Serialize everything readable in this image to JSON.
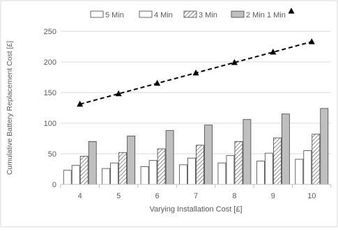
{
  "chart_data": {
    "type": "bar",
    "title": "",
    "xlabel": "Varying Installation Cost [£]",
    "ylabel": "Cumulative Battery Replacement Cost [£]",
    "ylim": [
      0,
      250
    ],
    "y_ticks": [
      0,
      50,
      100,
      150,
      200,
      250
    ],
    "grid": true,
    "legend_position": "top",
    "categories": [
      "4",
      "5",
      "6",
      "7",
      "8",
      "9",
      "10"
    ],
    "series": [
      {
        "name": "5 Min",
        "kind": "bar",
        "pattern": "hollow",
        "color": "#ffffff",
        "values": [
          23,
          26,
          29,
          32,
          35,
          38,
          41
        ]
      },
      {
        "name": "4 Min",
        "kind": "bar",
        "pattern": "hollow",
        "color": "#ffffff",
        "values": [
          31,
          35,
          39,
          43,
          47,
          51,
          55
        ]
      },
      {
        "name": "3 Min",
        "kind": "bar",
        "pattern": "hatched",
        "color": "#bfbfbf",
        "values": [
          46,
          52,
          58,
          64,
          70,
          76,
          82
        ]
      },
      {
        "name": "2 Min 1 Min",
        "kind": "bar",
        "pattern": "solid",
        "color": "#bfbfbf",
        "values": [
          70,
          79,
          88,
          97,
          106,
          115,
          124
        ]
      },
      {
        "name": "",
        "kind": "line",
        "style": "dashed-triangle",
        "color": "#000000",
        "values": [
          131,
          148,
          165,
          182,
          199,
          216,
          233
        ]
      }
    ]
  }
}
